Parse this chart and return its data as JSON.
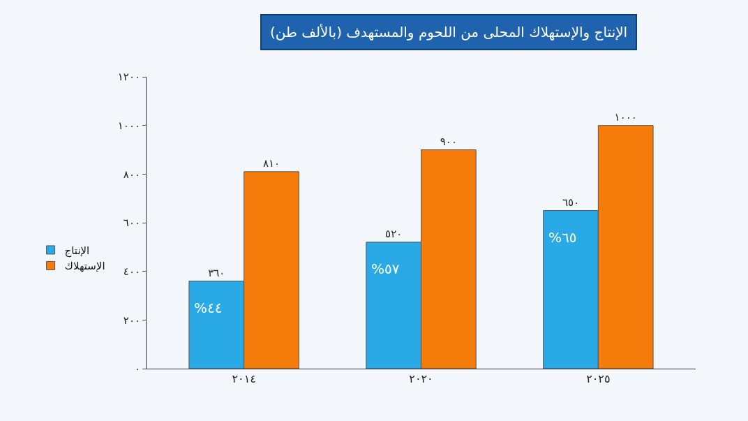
{
  "chart_data": {
    "type": "bar",
    "title": "الإنتاج والإستهلاك المحلى من اللحوم والمستهدف (بالألف طن)",
    "categories": [
      "٢٠١٤",
      "٢٠٢٠",
      "٢٠٢٥"
    ],
    "series": [
      {
        "name": "الإنتاج",
        "color": "#29a9e6",
        "values": [
          360,
          520,
          650
        ],
        "value_labels": [
          "٣٦٠",
          "٥٢٠",
          "٦٥٠"
        ]
      },
      {
        "name": "الإستهلاك",
        "color": "#f57c0a",
        "values": [
          810,
          900,
          1000
        ],
        "value_labels": [
          "٨١٠",
          "٩٠٠",
          "١٠٠٠"
        ]
      }
    ],
    "annotations": [
      {
        "text": "%٤٤",
        "x": "٢٠١٤",
        "y": 250
      },
      {
        "text": "%٥٧",
        "x": "٢٠٢٠",
        "y": 410
      },
      {
        "text": "%٦٥",
        "x": "٢٠٢٥",
        "y": 540
      }
    ],
    "ylim": [
      0,
      1200
    ],
    "yticks": [
      {
        "value": 0,
        "label": "٠"
      },
      {
        "value": 200,
        "label": "٢٠٠"
      },
      {
        "value": 400,
        "label": "٤٠٠"
      },
      {
        "value": 600,
        "label": "٦٠٠"
      },
      {
        "value": 800,
        "label": "٨٠٠"
      },
      {
        "value": 1000,
        "label": "١٠٠٠"
      },
      {
        "value": 1200,
        "label": "١٢٠٠"
      }
    ],
    "grid": false,
    "legend": "left"
  }
}
